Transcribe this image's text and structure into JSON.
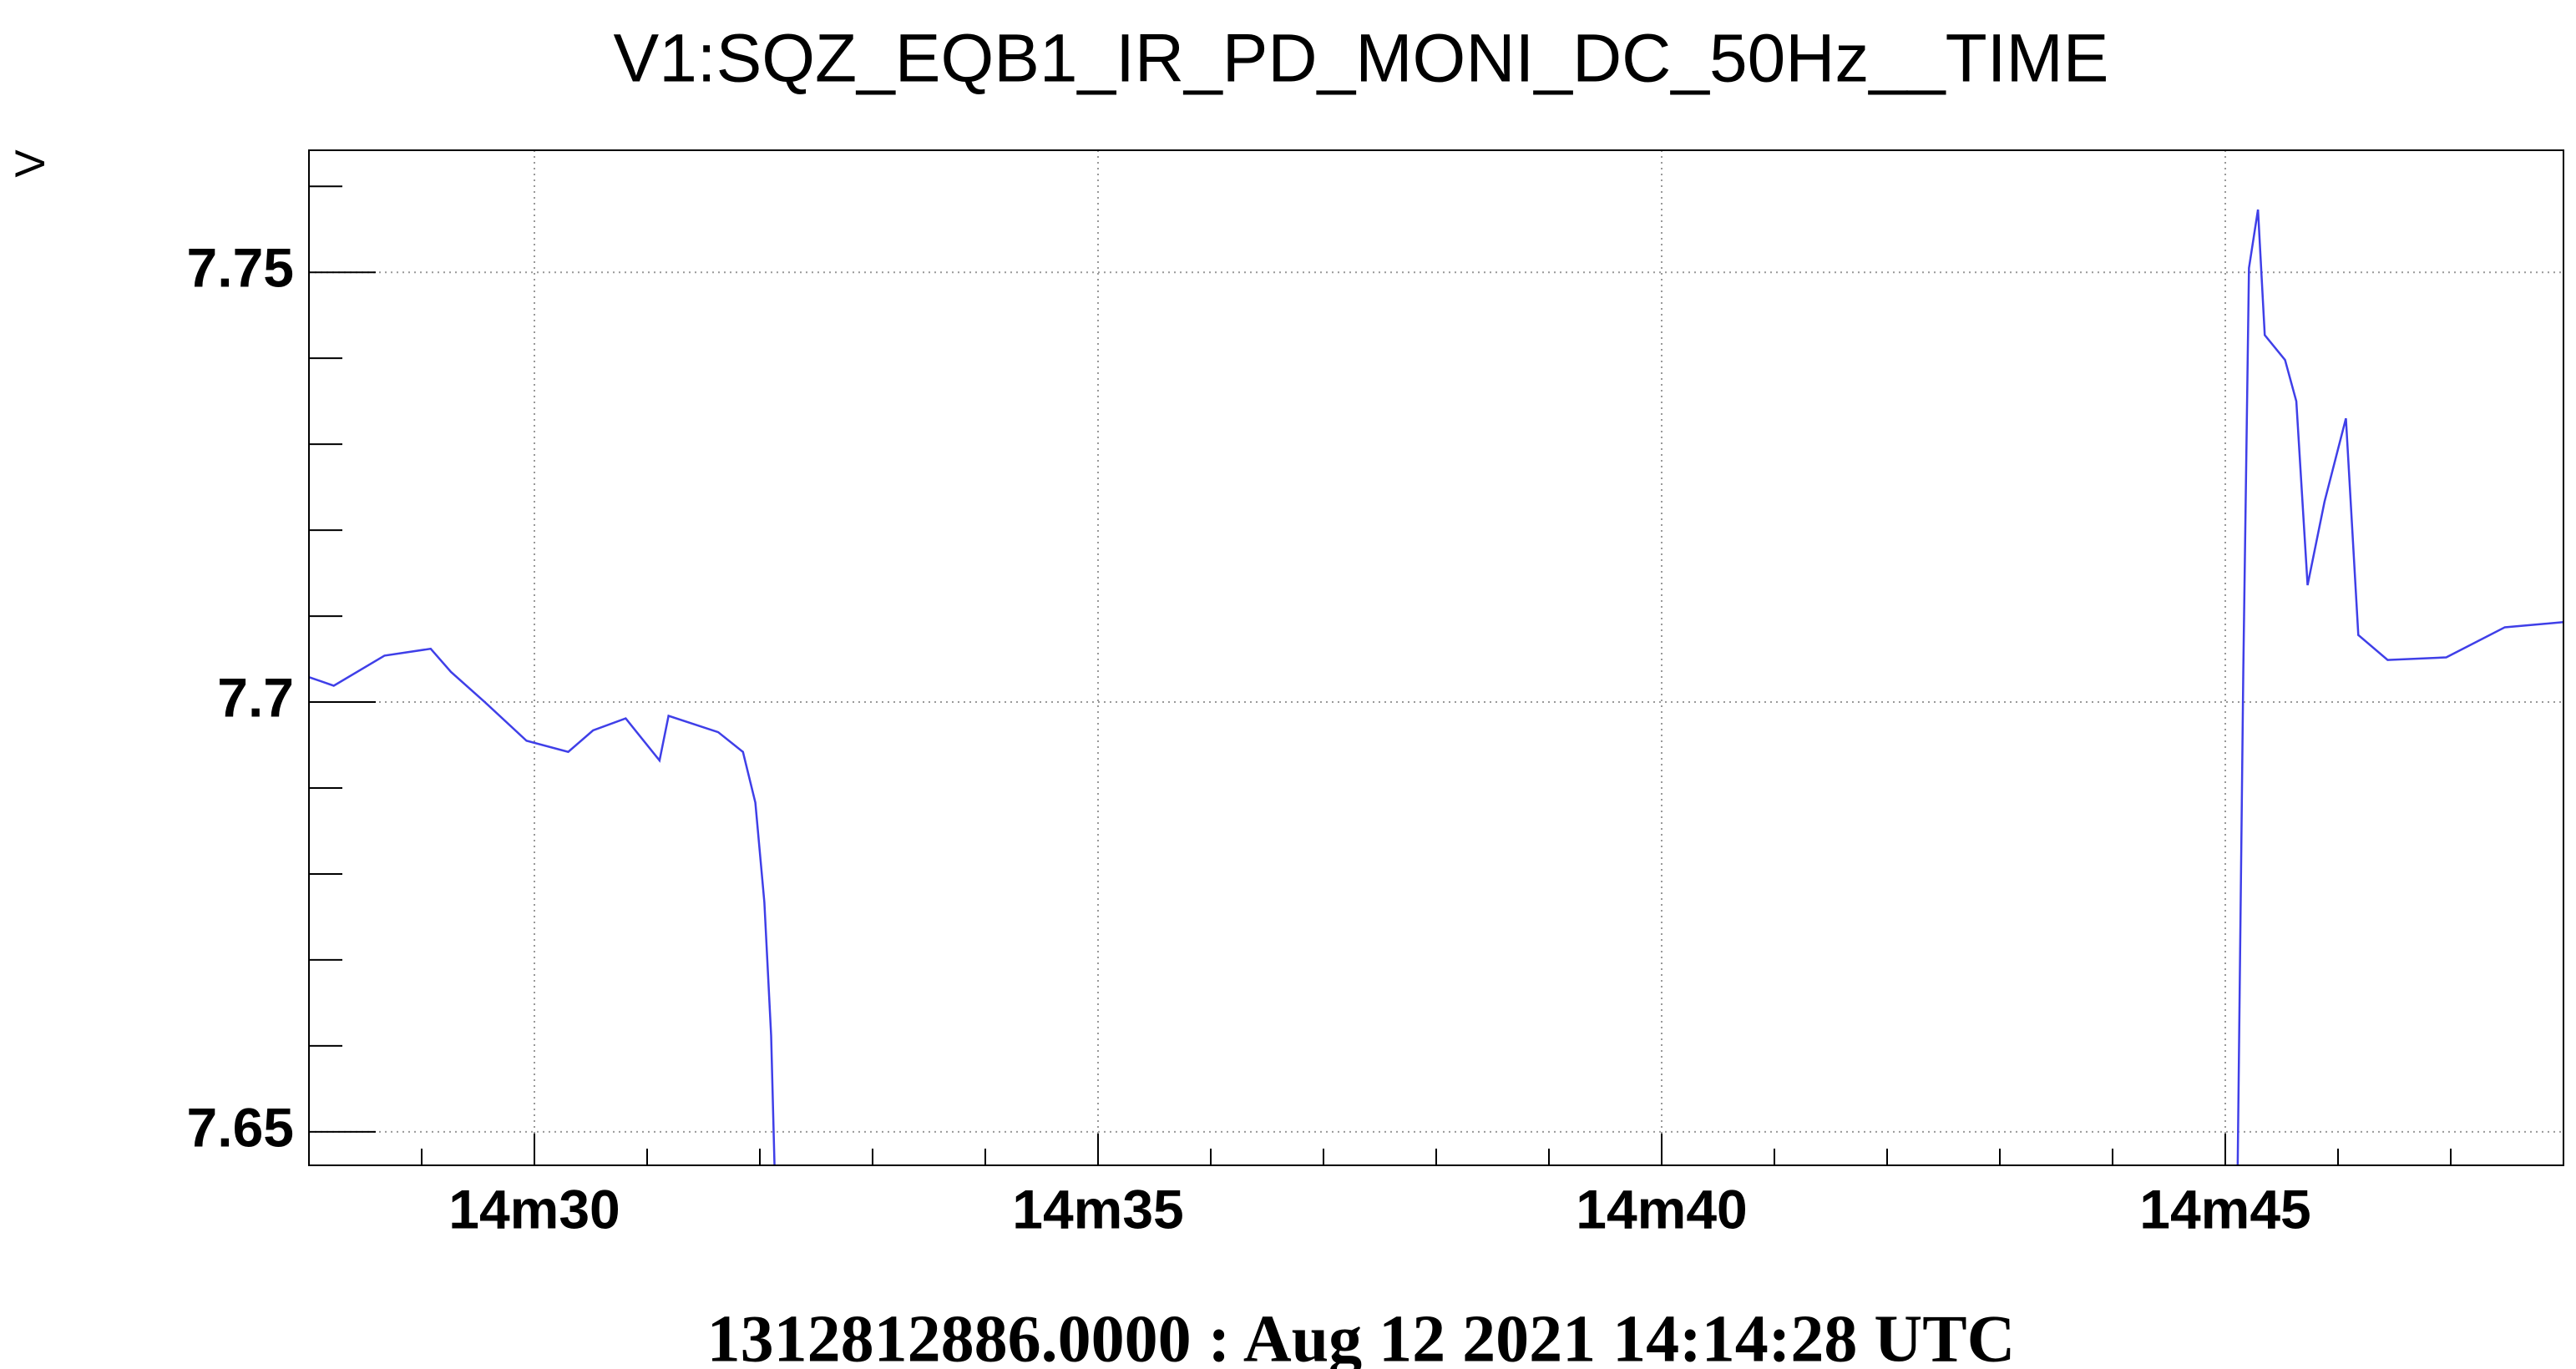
{
  "chart_data": {
    "type": "line",
    "title": "V1:SQZ_EQB1_IR_PD_MONI_DC_50Hz__TIME",
    "y_label": "V",
    "x_label": "1312812886.0000 : Aug 12 2021 14:14:28 UTC",
    "x": [
      28.0,
      28.22,
      28.67,
      29.08,
      29.26,
      29.56,
      29.93,
      30.3,
      30.52,
      30.81,
      31.11,
      31.19,
      31.63,
      31.85,
      31.96,
      32.04,
      32.1,
      32.13,
      null,
      45.11,
      45.16,
      45.21,
      45.29,
      45.35,
      45.53,
      45.63,
      45.73,
      45.88,
      46.07,
      46.18,
      46.44,
      46.96,
      47.48,
      48.0
    ],
    "series": [
      {
        "name": "V1:SQZ_EQB1_IR_PD_MONI_DC_50Hz",
        "color": "#3f3fe8",
        "values": [
          7.7029,
          7.7019,
          7.7054,
          7.7062,
          7.7035,
          7.7,
          7.6955,
          7.6942,
          7.6967,
          7.6981,
          7.6932,
          7.6984,
          7.6965,
          7.6942,
          7.6883,
          7.6767,
          7.6612,
          7.6461,
          null,
          7.6461,
          7.7039,
          7.7505,
          7.7573,
          7.7427,
          7.7398,
          7.735,
          7.7136,
          7.7233,
          7.733,
          7.7078,
          7.7049,
          7.7052,
          7.7087,
          7.7093
        ]
      }
    ],
    "xlim": [
      28,
      48
    ],
    "xticks": [
      {
        "value": 30,
        "label": "14m30"
      },
      {
        "value": 35,
        "label": "14m35"
      },
      {
        "value": 40,
        "label": "14m40"
      },
      {
        "value": 45,
        "label": "14m45"
      }
    ],
    "xminorticks": [
      29,
      31,
      32,
      33,
      34,
      36,
      37,
      38,
      39,
      41,
      42,
      43,
      44,
      46,
      47
    ],
    "ylim": [
      7.6461,
      7.7642
    ],
    "yticks": [
      7.65,
      7.7,
      7.75
    ],
    "yminorticks": [
      7.66,
      7.67,
      7.68,
      7.69,
      7.71,
      7.72,
      7.73,
      7.74,
      7.76
    ],
    "grid": true
  }
}
